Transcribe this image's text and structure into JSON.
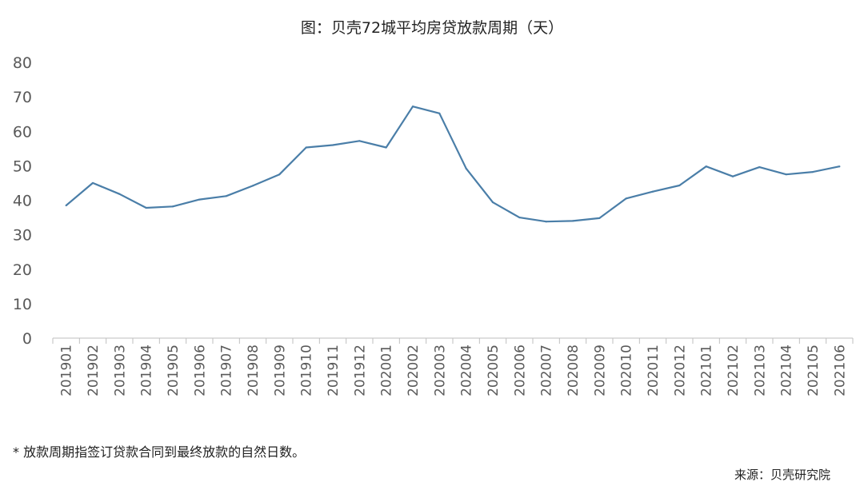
{
  "chart_data": {
    "type": "line",
    "title": "图：贝壳72城平均房贷放款周期（天）",
    "xlabel": "",
    "ylabel": "",
    "ylim": [
      0,
      80
    ],
    "yticks": [
      0,
      10,
      20,
      30,
      40,
      50,
      60,
      70,
      80
    ],
    "grid": false,
    "legend": "none",
    "line_color": "#4a7ea8",
    "categories": [
      "201901",
      "201902",
      "201903",
      "201904",
      "201905",
      "201906",
      "201907",
      "201908",
      "201909",
      "201910",
      "201911",
      "201912",
      "202001",
      "202002",
      "202003",
      "202004",
      "202005",
      "202006",
      "202007",
      "202008",
      "202009",
      "202010",
      "202011",
      "202012",
      "202101",
      "202102",
      "202103",
      "202104",
      "202105",
      "202106"
    ],
    "series": [
      {
        "values": [
          38.5,
          45,
          41.8,
          37.8,
          38.2,
          40.2,
          41.2,
          44.2,
          47.5,
          55.3,
          56,
          57.2,
          55.3,
          67.2,
          65.2,
          49.2,
          39.4,
          35,
          33.8,
          34,
          34.8,
          40.5,
          42.5,
          44.3,
          49.8,
          46.9,
          49.6,
          47.5,
          48.2,
          49.8
        ]
      }
    ]
  },
  "footnote": "* 放款周期指签订贷款合同到最终放款的自然日数。",
  "source": "来源：贝壳研究院"
}
